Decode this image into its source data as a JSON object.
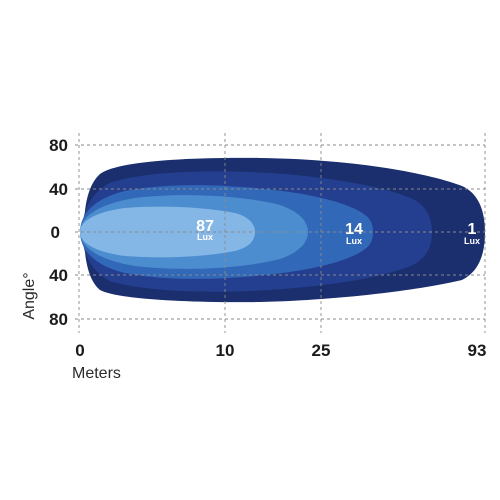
{
  "chart_data": {
    "type": "beam_pattern",
    "xlabel": "Meters",
    "ylabel": "Angle°",
    "x_ticks": [
      "0",
      "10",
      "25",
      "93"
    ],
    "y_ticks": [
      "80",
      "40",
      "0",
      "40",
      "80"
    ],
    "grid": true,
    "zones": [
      {
        "value": "1",
        "unit": "Lux",
        "color": "#1b2f6e"
      },
      {
        "value": "",
        "unit": "",
        "color": "#243f8f"
      },
      {
        "value": "14",
        "unit": "Lux",
        "color": "#3168b8"
      },
      {
        "value": "",
        "unit": "",
        "color": "#4c8dcf"
      },
      {
        "value": "87",
        "unit": "Lux",
        "color": "#84b6e6"
      }
    ]
  }
}
